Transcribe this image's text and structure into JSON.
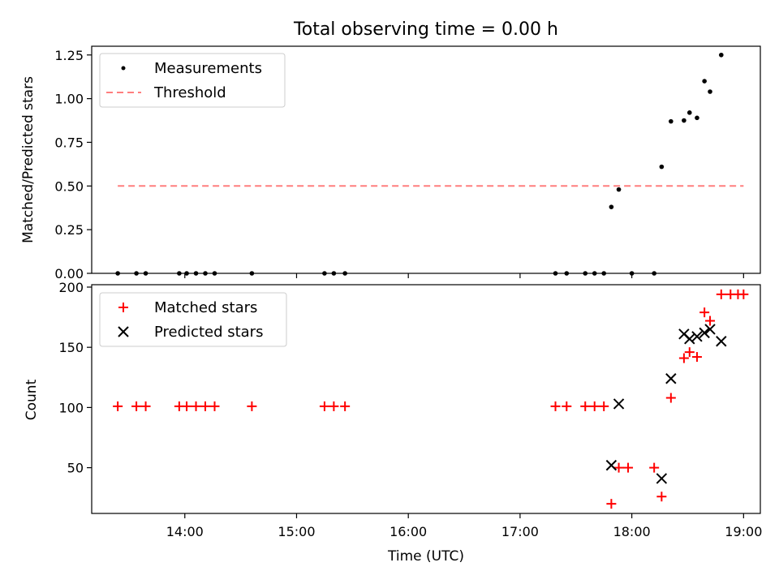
{
  "title": "Total observing time = 0.00 h",
  "chart_data": [
    {
      "type": "scatter",
      "ylabel": "Matched/Predicted stars",
      "ylim": [
        0,
        1.3
      ],
      "yticks": [
        0,
        0.25,
        0.5,
        0.75,
        1.0,
        1.25
      ],
      "ytick_labels": [
        "0.00",
        "0.25",
        "0.50",
        "0.75",
        "1.00",
        "1.25"
      ],
      "legend_position": "top-left",
      "threshold": {
        "name": "Threshold",
        "y": 0.5,
        "x_range": [
          "13:24",
          "19:00"
        ],
        "color": "#ff7f7f"
      },
      "series": [
        {
          "name": "Measurements",
          "color": "#000000",
          "x": [
            "13:24",
            "13:34",
            "13:39",
            "13:57",
            "14:01",
            "14:06",
            "14:11",
            "14:16",
            "14:36",
            "15:15",
            "15:20",
            "15:26",
            "17:19",
            "17:25",
            "17:35",
            "17:40",
            "17:45",
            "17:49",
            "17:53",
            "18:00",
            "18:12",
            "18:16",
            "18:21",
            "18:28",
            "18:31",
            "18:35",
            "18:39",
            "18:42",
            "18:48"
          ],
          "y": [
            0,
            0,
            0,
            0,
            0,
            0,
            0,
            0,
            0,
            0,
            0,
            0,
            0,
            0,
            0,
            0,
            0,
            0.38,
            0.48,
            0,
            0,
            0.61,
            0.87,
            0.875,
            0.92,
            0.89,
            1.1,
            1.04,
            1.25
          ]
        }
      ]
    },
    {
      "type": "scatter",
      "ylabel": "Count",
      "xlabel": "Time (UTC)",
      "xlim": [
        "13:10",
        "19:09"
      ],
      "xticks": [
        "14:00",
        "15:00",
        "16:00",
        "17:00",
        "18:00",
        "19:00"
      ],
      "yticks": [
        50,
        100,
        150,
        200
      ],
      "ylim": [
        12,
        202
      ],
      "legend_position": "top-left",
      "series": [
        {
          "name": "Matched stars",
          "marker": "plus",
          "color": "#ff0000",
          "x": [
            "13:24",
            "13:34",
            "13:39",
            "13:57",
            "14:01",
            "14:06",
            "14:11",
            "14:16",
            "14:36",
            "15:15",
            "15:20",
            "15:26",
            "17:19",
            "17:25",
            "17:35",
            "17:40",
            "17:45",
            "17:49",
            "17:53",
            "17:58",
            "18:12",
            "18:16",
            "18:21",
            "18:28",
            "18:31",
            "18:35",
            "18:39",
            "18:42",
            "18:48",
            "18:53",
            "18:57",
            "19:00"
          ],
          "y": [
            101,
            101,
            101,
            101,
            101,
            101,
            101,
            101,
            101,
            101,
            101,
            101,
            101,
            101,
            101,
            101,
            101,
            20,
            50,
            50,
            50,
            26,
            108,
            141,
            146,
            142,
            179,
            172,
            194,
            194,
            194,
            194
          ]
        },
        {
          "name": "Predicted stars",
          "marker": "x",
          "color": "#000000",
          "x": [
            "17:49",
            "17:53",
            "18:16",
            "18:21",
            "18:28",
            "18:31",
            "18:35",
            "18:39",
            "18:42",
            "18:48"
          ],
          "y": [
            52,
            103,
            41,
            124,
            161,
            157,
            159,
            162,
            165,
            155
          ]
        }
      ]
    }
  ]
}
